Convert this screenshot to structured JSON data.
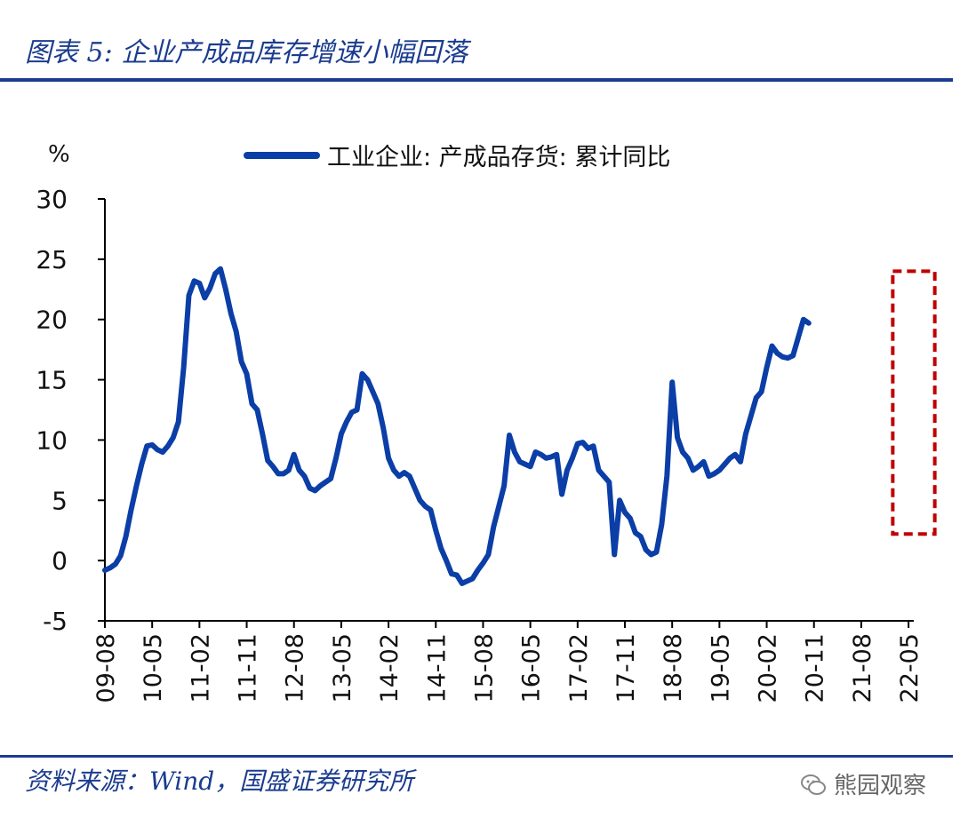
{
  "figure_title": "图表 5:  企业产成品库存增速小幅回落",
  "source": "资料来源：Wind，国盛证券研究所",
  "watermark": {
    "text": "熊园观察",
    "icon": "wechat-icon"
  },
  "colors": {
    "line": "#0b3ea6",
    "highlight": "#c00000",
    "rule": "#1b3c8f"
  },
  "chart_data": {
    "type": "line",
    "unit_label": "%",
    "ylim": [
      -5,
      30
    ],
    "yticks": [
      -5,
      0,
      5,
      10,
      15,
      20,
      25,
      30
    ],
    "xlim": [
      0,
      154
    ],
    "xtick_labels": [
      "09-08",
      "10-05",
      "11-02",
      "11-11",
      "12-08",
      "13-05",
      "14-02",
      "14-11",
      "15-08",
      "16-05",
      "17-02",
      "17-11",
      "18-08",
      "19-05",
      "20-02",
      "20-11",
      "21-08",
      "22-05"
    ],
    "xtick_step": 9,
    "legend": {
      "label": "工业企业: 产成品存货: 累计同比",
      "placement": "top-center"
    },
    "highlight_box": {
      "x_range": [
        150,
        158
      ],
      "y_range": [
        2.2,
        24
      ],
      "style": "dashed"
    },
    "series": [
      {
        "name": "工业企业: 产成品存货: 累计同比",
        "points": [
          [
            0,
            -0.8
          ],
          [
            1,
            -0.6
          ],
          [
            2,
            -0.3
          ],
          [
            3,
            0.4
          ],
          [
            4,
            2.0
          ],
          [
            5,
            4.2
          ],
          [
            6,
            6.2
          ],
          [
            7,
            8.0
          ],
          [
            8,
            9.5
          ],
          [
            9,
            9.6
          ],
          [
            10,
            9.2
          ],
          [
            11,
            9.0
          ],
          [
            12,
            9.5
          ],
          [
            13,
            10.2
          ],
          [
            14,
            11.5
          ],
          [
            15,
            16.0
          ],
          [
            16,
            22.0
          ],
          [
            17,
            23.2
          ],
          [
            18,
            23.0
          ],
          [
            19,
            21.8
          ],
          [
            20,
            22.6
          ],
          [
            21,
            23.8
          ],
          [
            22,
            24.2
          ],
          [
            23,
            22.5
          ],
          [
            24,
            20.5
          ],
          [
            25,
            19.0
          ],
          [
            26,
            16.5
          ],
          [
            27,
            15.5
          ],
          [
            28,
            13.0
          ],
          [
            29,
            12.5
          ],
          [
            30,
            10.5
          ],
          [
            31,
            8.3
          ],
          [
            32,
            7.8
          ],
          [
            33,
            7.2
          ],
          [
            34,
            7.2
          ],
          [
            35,
            7.5
          ],
          [
            36,
            8.8
          ],
          [
            37,
            7.5
          ],
          [
            38,
            7.0
          ],
          [
            39,
            6.0
          ],
          [
            40,
            5.8
          ],
          [
            41,
            6.2
          ],
          [
            42,
            6.5
          ],
          [
            43,
            6.8
          ],
          [
            44,
            8.5
          ],
          [
            45,
            10.5
          ],
          [
            46,
            11.5
          ],
          [
            47,
            12.3
          ],
          [
            48,
            12.5
          ],
          [
            49,
            15.5
          ],
          [
            50,
            15.0
          ],
          [
            51,
            14.0
          ],
          [
            52,
            13.0
          ],
          [
            53,
            11.0
          ],
          [
            54,
            8.5
          ],
          [
            55,
            7.5
          ],
          [
            56,
            7.0
          ],
          [
            57,
            7.3
          ],
          [
            58,
            7.0
          ],
          [
            59,
            6.0
          ],
          [
            60,
            5.0
          ],
          [
            61,
            4.5
          ],
          [
            62,
            4.2
          ],
          [
            63,
            2.5
          ],
          [
            64,
            1.0
          ],
          [
            65,
            0.0
          ],
          [
            66,
            -1.1
          ],
          [
            67,
            -1.2
          ],
          [
            68,
            -1.9
          ],
          [
            69,
            -1.7
          ],
          [
            70,
            -1.5
          ],
          [
            71,
            -0.8
          ],
          [
            72,
            -0.2
          ],
          [
            73,
            0.5
          ],
          [
            74,
            2.8
          ],
          [
            75,
            4.5
          ],
          [
            76,
            6.2
          ],
          [
            77,
            10.4
          ],
          [
            78,
            9.0
          ],
          [
            79,
            8.2
          ],
          [
            80,
            8.0
          ],
          [
            81,
            7.8
          ],
          [
            82,
            9.0
          ],
          [
            83,
            8.8
          ],
          [
            84,
            8.5
          ],
          [
            85,
            8.6
          ],
          [
            86,
            8.8
          ],
          [
            87,
            5.5
          ],
          [
            88,
            7.5
          ],
          [
            89,
            8.5
          ],
          [
            90,
            9.7
          ],
          [
            91,
            9.8
          ],
          [
            92,
            9.3
          ],
          [
            93,
            9.5
          ],
          [
            94,
            7.5
          ],
          [
            95,
            7.0
          ],
          [
            96,
            6.5
          ],
          [
            97,
            0.5
          ],
          [
            98,
            5.0
          ],
          [
            99,
            4.0
          ],
          [
            100,
            3.5
          ],
          [
            101,
            2.3
          ],
          [
            102,
            2.0
          ],
          [
            103,
            0.9
          ],
          [
            104,
            0.5
          ],
          [
            105,
            0.7
          ],
          [
            106,
            3.0
          ],
          [
            107,
            7.0
          ],
          [
            108,
            14.8
          ],
          [
            109,
            10.2
          ],
          [
            110,
            9.0
          ],
          [
            111,
            8.5
          ],
          [
            112,
            7.5
          ],
          [
            113,
            7.8
          ],
          [
            114,
            8.2
          ],
          [
            115,
            7.0
          ],
          [
            116,
            7.2
          ],
          [
            117,
            7.5
          ],
          [
            118,
            8.0
          ],
          [
            119,
            8.5
          ],
          [
            120,
            8.8
          ],
          [
            121,
            8.2
          ],
          [
            122,
            10.5
          ],
          [
            123,
            12.0
          ],
          [
            124,
            13.5
          ],
          [
            125,
            14.0
          ],
          [
            126,
            16.0
          ],
          [
            127,
            17.8
          ],
          [
            128,
            17.2
          ],
          [
            129,
            16.9
          ],
          [
            130,
            16.8
          ],
          [
            131,
            17.0
          ],
          [
            132,
            18.5
          ],
          [
            133,
            20.0
          ],
          [
            134,
            19.7
          ]
        ]
      }
    ]
  }
}
